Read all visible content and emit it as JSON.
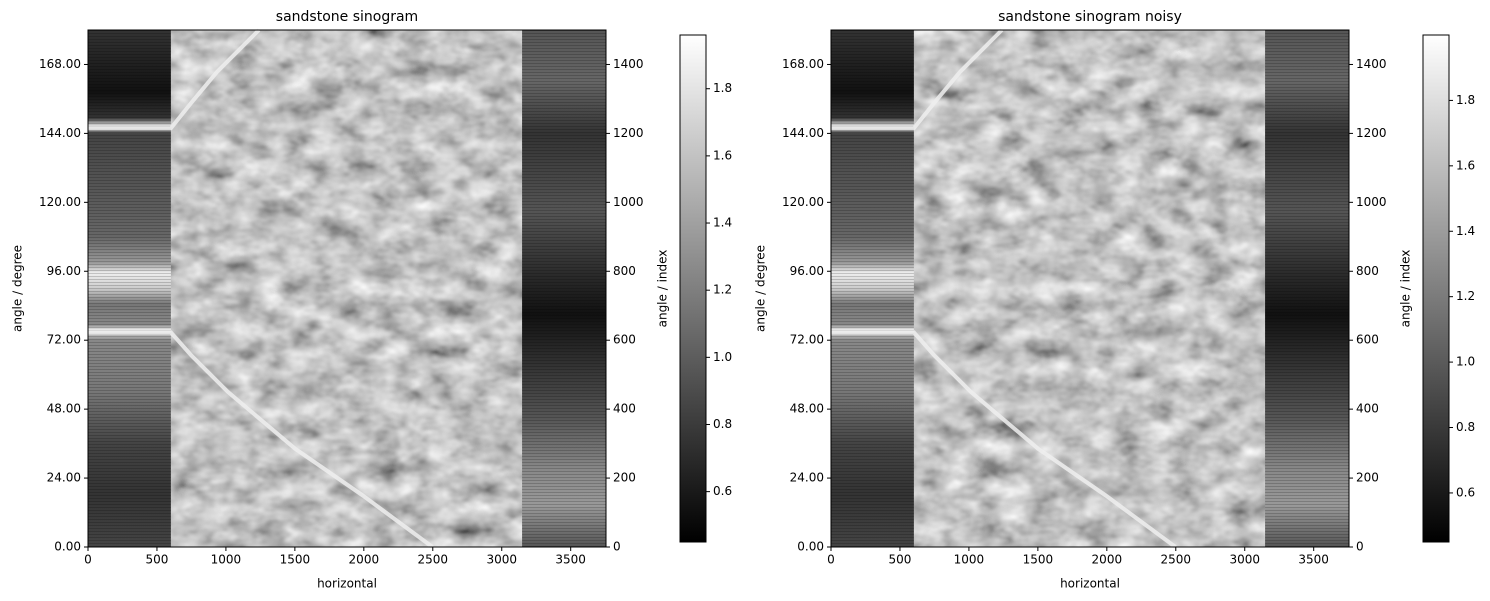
{
  "chart_data": [
    {
      "type": "image",
      "title": "sandstone sinogram",
      "xlabel": "horizontal",
      "ylabel": "angle / degree",
      "y2label": "angle / index",
      "colormap": "gray",
      "xlim": [
        0,
        3756
      ],
      "xticks": [
        0,
        500,
        1000,
        1500,
        2000,
        2500,
        3000,
        3500
      ],
      "ylim": [
        0,
        180
      ],
      "yticks": [
        {
          "value": 0,
          "label": "0.00"
        },
        {
          "value": 24,
          "label": "24.00"
        },
        {
          "value": 48,
          "label": "48.00"
        },
        {
          "value": 72,
          "label": "72.00"
        },
        {
          "value": 96,
          "label": "96.00"
        },
        {
          "value": 120,
          "label": "120.00"
        },
        {
          "value": 144,
          "label": "144.00"
        },
        {
          "value": 168,
          "label": "168.00"
        }
      ],
      "y2lim": [
        0,
        1500
      ],
      "y2ticks": [
        0,
        200,
        400,
        600,
        800,
        1000,
        1200,
        1400
      ],
      "clim": [
        0.45,
        1.96
      ],
      "cticks": [
        0.6,
        0.8,
        {
          "value": 1,
          "label": "1.0"
        },
        1.2,
        1.4,
        1.6,
        1.8
      ]
    },
    {
      "type": "image",
      "title": "sandstone sinogram noisy",
      "xlabel": "horizontal",
      "ylabel": "angle / degree",
      "y2label": "angle / index",
      "colormap": "gray",
      "xlim": [
        0,
        3756
      ],
      "xticks": [
        0,
        500,
        1000,
        1500,
        2000,
        2500,
        3000,
        3500
      ],
      "ylim": [
        0,
        180
      ],
      "yticks": [
        {
          "value": 0,
          "label": "0.00"
        },
        {
          "value": 24,
          "label": "24.00"
        },
        {
          "value": 48,
          "label": "48.00"
        },
        {
          "value": 72,
          "label": "72.00"
        },
        {
          "value": 96,
          "label": "96.00"
        },
        {
          "value": 120,
          "label": "120.00"
        },
        {
          "value": 144,
          "label": "144.00"
        },
        {
          "value": 168,
          "label": "168.00"
        }
      ],
      "y2lim": [
        0,
        1500
      ],
      "y2ticks": [
        0,
        200,
        400,
        600,
        800,
        1000,
        1200,
        1400
      ],
      "clim": [
        0.45,
        2.0
      ],
      "cticks": [
        0.6,
        0.8,
        {
          "value": 1,
          "label": "1.0"
        },
        1.2,
        1.4,
        1.6,
        1.8
      ]
    }
  ]
}
